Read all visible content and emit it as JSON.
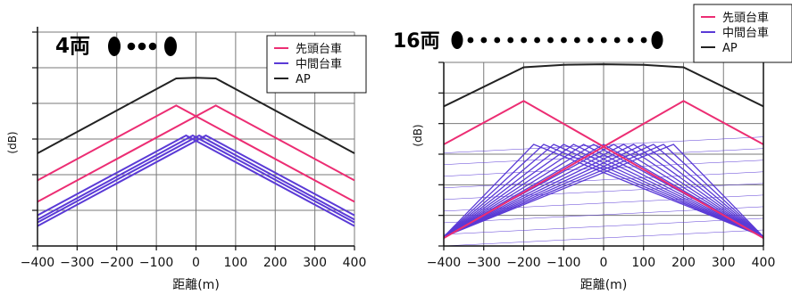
{
  "chart_data": [
    {
      "type": "line",
      "title": "4両",
      "xlabel": "距離(m)",
      "ylabel": "(dB)",
      "xlim": [
        -400,
        400
      ],
      "ylim": [
        0,
        30
      ],
      "xticks": [
        -400,
        -300,
        -200,
        -100,
        0,
        100,
        200,
        300,
        400
      ],
      "grid": true,
      "legend_position": "top-right",
      "car_count": 4,
      "legend": [
        {
          "label": "先頭台車",
          "color": "#ec2d73"
        },
        {
          "label": "中間台車",
          "color": "#5a3ad6"
        },
        {
          "label": "AP",
          "color": "#222222"
        }
      ],
      "series": [
        {
          "color": "#222222",
          "x": [
            -400,
            -50,
            0,
            50,
            400
          ],
          "y": [
            13,
            23.5,
            23.6,
            23.5,
            13
          ]
        },
        {
          "color": "#ec2d73",
          "x": [
            -400,
            -50,
            400
          ],
          "y": [
            9.2,
            19.7,
            6.2
          ]
        },
        {
          "color": "#ec2d73",
          "x": [
            -400,
            50,
            400
          ],
          "y": [
            6.2,
            19.7,
            9.2
          ]
        },
        {
          "color": "#5a3ad6",
          "x": [
            -400,
            -25,
            400
          ],
          "y": [
            4.3,
            15.5,
            2.8
          ]
        },
        {
          "color": "#5a3ad6",
          "x": [
            -400,
            -8,
            400
          ],
          "y": [
            3.7,
            15.5,
            3.3
          ]
        },
        {
          "color": "#5a3ad6",
          "x": [
            -400,
            8,
            400
          ],
          "y": [
            3.3,
            15.5,
            3.7
          ]
        },
        {
          "color": "#5a3ad6",
          "x": [
            -400,
            25,
            400
          ],
          "y": [
            2.8,
            15.5,
            4.3
          ]
        }
      ]
    },
    {
      "type": "line",
      "title": "16両",
      "xlabel": "距離(m)",
      "ylabel": "(dB)",
      "xlim": [
        -400,
        400
      ],
      "ylim": [
        0,
        30
      ],
      "xticks": [
        -400,
        -300,
        -200,
        -100,
        0,
        100,
        200,
        300,
        400
      ],
      "grid": true,
      "legend_position": "top-right",
      "car_count": 16,
      "legend": [
        {
          "label": "先頭台車",
          "color": "#ec2d73"
        },
        {
          "label": "中間台車",
          "color": "#5a3ad6"
        },
        {
          "label": "AP",
          "color": "#222222"
        }
      ],
      "series": [
        {
          "color": "#222222",
          "x": [
            -400,
            -200,
            -100,
            0,
            100,
            200,
            400
          ],
          "y": [
            22.8,
            29.2,
            29.6,
            29.7,
            29.6,
            29.2,
            22.8
          ]
        },
        {
          "color": "#ec2d73",
          "x": [
            -400,
            -200,
            400
          ],
          "y": [
            16.6,
            23.7,
            1.3
          ]
        },
        {
          "color": "#ec2d73",
          "x": [
            -400,
            200,
            400
          ],
          "y": [
            1.3,
            23.7,
            16.6
          ]
        }
      ],
      "middle_bands": [
        {
          "color": "#5a3ad6",
          "peak_x": [
            -175,
            -150,
            -125,
            -100,
            -75,
            -50,
            -25,
            0,
            25,
            50,
            75,
            100,
            125,
            150,
            175
          ],
          "peak_y": 16.6,
          "low_y_at_far_end": 1.5
        }
      ]
    }
  ]
}
